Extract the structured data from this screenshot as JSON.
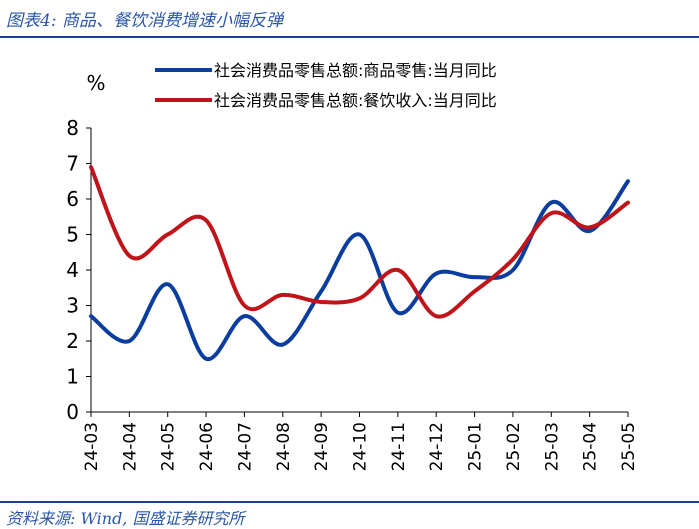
{
  "header": {
    "title": "图表4:  商品、餐饮消费增速小幅反弹"
  },
  "footer": {
    "source": "资料来源:  Wind, 国盛证券研究所"
  },
  "colors": {
    "title_blue": "#2a56a8",
    "rule_navy": "#1e3f8f",
    "series_blue": "#0a3d9e",
    "series_red": "#c0141b"
  },
  "chart_data": {
    "type": "line",
    "ylabel": "%",
    "ylim": [
      0,
      8
    ],
    "yticks": [
      0,
      1,
      2,
      3,
      4,
      5,
      6,
      7,
      8
    ],
    "grid": false,
    "legend_position": "top",
    "categories": [
      "24-03",
      "24-04",
      "24-05",
      "24-06",
      "24-07",
      "24-08",
      "24-09",
      "24-10",
      "24-11",
      "24-12",
      "25-01",
      "25-02",
      "25-03",
      "25-04",
      "25-05"
    ],
    "series": [
      {
        "name": "社会消费品零售总额:商品零售:当月同比",
        "color": "#0a3d9e",
        "values": [
          2.7,
          2.0,
          3.6,
          1.5,
          2.7,
          1.9,
          3.4,
          5.0,
          2.8,
          3.9,
          3.8,
          4.0,
          5.9,
          5.1,
          6.5
        ]
      },
      {
        "name": "社会消费品零售总额:餐饮收入:当月同比",
        "color": "#c0141b",
        "values": [
          6.9,
          4.4,
          5.0,
          5.4,
          3.0,
          3.3,
          3.1,
          3.2,
          4.0,
          2.7,
          3.4,
          4.3,
          5.6,
          5.2,
          5.9
        ]
      }
    ]
  }
}
